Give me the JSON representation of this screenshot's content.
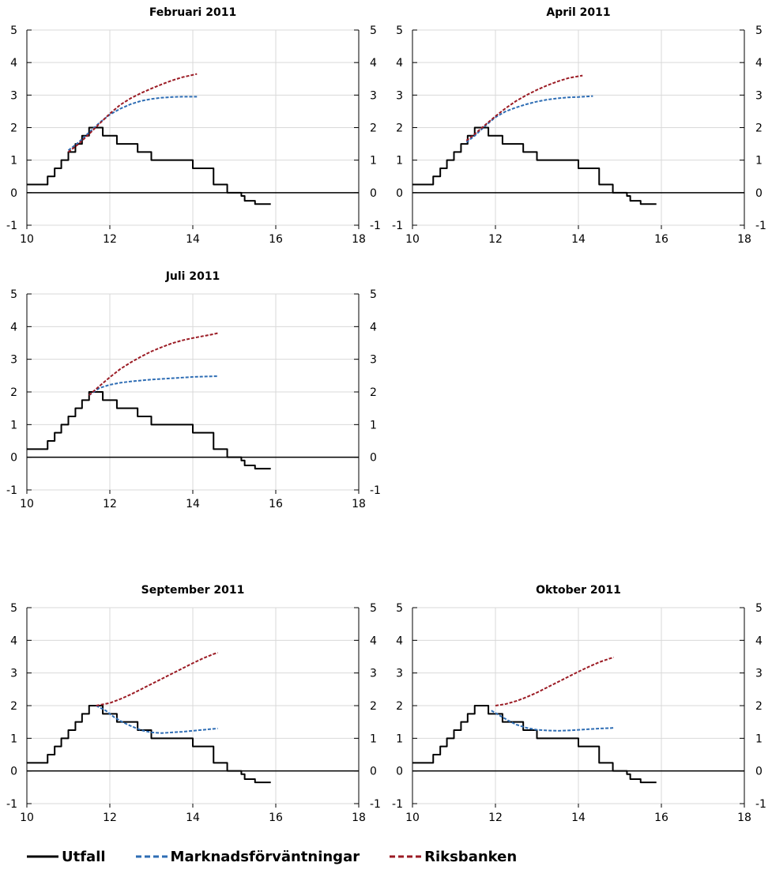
{
  "chart_data": [
    {
      "type": "line",
      "title": "Februari 2011",
      "xlim": [
        10,
        18
      ],
      "ylim": [
        -1,
        5
      ],
      "x_ticks": [
        "10",
        "12",
        "14",
        "16",
        "18"
      ],
      "y_ticks": [
        "-1",
        "0",
        "1",
        "2",
        "3",
        "4",
        "5"
      ],
      "grid": true,
      "series": [
        {
          "name": "Utfall",
          "style": "step",
          "color": "#000000",
          "x": [
            10.0,
            10.5,
            10.67,
            10.83,
            11.0,
            11.17,
            11.33,
            11.5,
            11.58,
            11.67,
            11.83,
            12.0,
            12.17,
            12.25,
            12.42,
            12.5,
            12.67,
            12.83,
            13.0,
            13.17,
            13.33,
            13.5,
            13.67,
            13.83,
            14.0,
            14.17,
            14.33,
            14.5,
            14.67,
            14.83,
            15.0,
            15.17,
            15.25,
            15.33,
            15.5,
            15.67,
            15.83
          ],
          "y": [
            0.25,
            0.5,
            0.75,
            1.0,
            1.25,
            1.5,
            1.75,
            2.0,
            2.0,
            2.0,
            1.75,
            1.75,
            1.5,
            1.5,
            1.5,
            1.5,
            1.25,
            1.25,
            1.0,
            1.0,
            1.0,
            1.0,
            1.0,
            1.0,
            0.75,
            0.75,
            0.75,
            0.25,
            0.25,
            0.0,
            0.0,
            -0.1,
            -0.25,
            -0.25,
            -0.35,
            -0.35,
            -0.35
          ]
        },
        {
          "name": "Marknadsförväntningar",
          "style": "dashed",
          "color": "#2e6db4",
          "x": [
            11.0,
            11.25,
            11.5,
            11.75,
            12.0,
            12.25,
            12.5,
            12.75,
            13.0,
            13.25,
            13.5,
            13.75,
            14.0,
            14.1
          ],
          "y": [
            1.3,
            1.55,
            1.85,
            2.15,
            2.4,
            2.58,
            2.72,
            2.82,
            2.88,
            2.92,
            2.94,
            2.95,
            2.95,
            2.95
          ]
        },
        {
          "name": "Riksbanken",
          "style": "dashed",
          "color": "#9b1b24",
          "x": [
            11.0,
            11.25,
            11.5,
            11.75,
            12.0,
            12.25,
            12.5,
            12.75,
            13.0,
            13.25,
            13.5,
            13.75,
            14.0,
            14.1
          ],
          "y": [
            1.25,
            1.5,
            1.8,
            2.12,
            2.43,
            2.7,
            2.9,
            3.06,
            3.2,
            3.33,
            3.45,
            3.55,
            3.62,
            3.65
          ]
        }
      ]
    },
    {
      "type": "line",
      "title": "April 2011",
      "xlim": [
        10,
        18
      ],
      "ylim": [
        -1,
        5
      ],
      "x_ticks": [
        "10",
        "12",
        "14",
        "16",
        "18"
      ],
      "y_ticks": [
        "-1",
        "0",
        "1",
        "2",
        "3",
        "4",
        "5"
      ],
      "grid": true,
      "series": [
        {
          "name": "Utfall",
          "style": "step",
          "color": "#000000",
          "x": [
            10.0,
            10.5,
            10.67,
            10.83,
            11.0,
            11.17,
            11.33,
            11.5,
            11.58,
            11.67,
            11.83,
            12.0,
            12.17,
            12.25,
            12.42,
            12.5,
            12.67,
            12.83,
            13.0,
            13.17,
            13.33,
            13.5,
            13.67,
            13.83,
            14.0,
            14.17,
            14.33,
            14.5,
            14.67,
            14.83,
            15.0,
            15.17,
            15.25,
            15.33,
            15.5,
            15.67,
            15.83
          ],
          "y": [
            0.25,
            0.5,
            0.75,
            1.0,
            1.25,
            1.5,
            1.75,
            2.0,
            2.0,
            2.0,
            1.75,
            1.75,
            1.5,
            1.5,
            1.5,
            1.5,
            1.25,
            1.25,
            1.0,
            1.0,
            1.0,
            1.0,
            1.0,
            1.0,
            0.75,
            0.75,
            0.75,
            0.25,
            0.25,
            0.0,
            0.0,
            -0.1,
            -0.25,
            -0.25,
            -0.35,
            -0.35,
            -0.35
          ]
        },
        {
          "name": "Marknadsförväntningar",
          "style": "dashed",
          "color": "#2e6db4",
          "x": [
            11.3,
            11.5,
            11.75,
            12.0,
            12.25,
            12.5,
            12.75,
            13.0,
            13.25,
            13.5,
            13.75,
            14.0,
            14.25,
            14.35
          ],
          "y": [
            1.55,
            1.75,
            2.05,
            2.32,
            2.5,
            2.62,
            2.72,
            2.8,
            2.86,
            2.9,
            2.93,
            2.94,
            2.96,
            2.97
          ]
        },
        {
          "name": "Riksbanken",
          "style": "dashed",
          "color": "#9b1b24",
          "x": [
            11.3,
            11.5,
            11.75,
            12.0,
            12.25,
            12.5,
            12.75,
            13.0,
            13.25,
            13.5,
            13.75,
            14.0,
            14.1
          ],
          "y": [
            1.6,
            1.8,
            2.08,
            2.35,
            2.6,
            2.82,
            3.0,
            3.16,
            3.3,
            3.42,
            3.52,
            3.58,
            3.6
          ]
        }
      ]
    },
    {
      "type": "line",
      "title": "Juli 2011",
      "xlim": [
        10,
        18
      ],
      "ylim": [
        -1,
        5
      ],
      "x_ticks": [
        "10",
        "12",
        "14",
        "16",
        "18"
      ],
      "y_ticks": [
        "-1",
        "0",
        "1",
        "2",
        "3",
        "4",
        "5"
      ],
      "grid": true,
      "series": [
        {
          "name": "Utfall",
          "style": "step",
          "color": "#000000",
          "x": [
            10.0,
            10.5,
            10.67,
            10.83,
            11.0,
            11.17,
            11.33,
            11.5,
            11.58,
            11.67,
            11.83,
            12.0,
            12.17,
            12.25,
            12.42,
            12.5,
            12.67,
            12.83,
            13.0,
            13.17,
            13.33,
            13.5,
            13.67,
            13.83,
            14.0,
            14.17,
            14.33,
            14.5,
            14.67,
            14.83,
            15.0,
            15.17,
            15.25,
            15.33,
            15.5,
            15.67,
            15.83
          ],
          "y": [
            0.25,
            0.5,
            0.75,
            1.0,
            1.25,
            1.5,
            1.75,
            2.0,
            2.0,
            2.0,
            1.75,
            1.75,
            1.5,
            1.5,
            1.5,
            1.5,
            1.25,
            1.25,
            1.0,
            1.0,
            1.0,
            1.0,
            1.0,
            1.0,
            0.75,
            0.75,
            0.75,
            0.25,
            0.25,
            0.0,
            0.0,
            -0.1,
            -0.25,
            -0.25,
            -0.35,
            -0.35,
            -0.35
          ]
        },
        {
          "name": "Marknadsförväntningar",
          "style": "dashed",
          "color": "#2e6db4",
          "x": [
            11.5,
            11.75,
            12.0,
            12.25,
            12.5,
            12.75,
            13.0,
            13.25,
            13.5,
            13.75,
            14.0,
            14.25,
            14.5,
            14.6
          ],
          "y": [
            1.9,
            2.12,
            2.22,
            2.28,
            2.32,
            2.35,
            2.38,
            2.4,
            2.42,
            2.44,
            2.46,
            2.47,
            2.48,
            2.48
          ]
        },
        {
          "name": "Riksbanken",
          "style": "dashed",
          "color": "#9b1b24",
          "x": [
            11.5,
            11.75,
            12.0,
            12.25,
            12.5,
            12.75,
            13.0,
            13.25,
            13.5,
            13.75,
            14.0,
            14.25,
            14.5,
            14.6
          ],
          "y": [
            1.9,
            2.18,
            2.45,
            2.7,
            2.9,
            3.08,
            3.24,
            3.37,
            3.49,
            3.58,
            3.65,
            3.71,
            3.77,
            3.8
          ]
        }
      ]
    },
    {
      "type": "line",
      "title": "September 2011",
      "xlim": [
        10,
        18
      ],
      "ylim": [
        -1,
        5
      ],
      "x_ticks": [
        "10",
        "12",
        "14",
        "16",
        "18"
      ],
      "y_ticks": [
        "-1",
        "0",
        "1",
        "2",
        "3",
        "4",
        "5"
      ],
      "grid": true,
      "series": [
        {
          "name": "Utfall",
          "style": "step",
          "color": "#000000",
          "x": [
            10.0,
            10.5,
            10.67,
            10.83,
            11.0,
            11.17,
            11.33,
            11.5,
            11.58,
            11.67,
            11.83,
            12.0,
            12.17,
            12.25,
            12.42,
            12.5,
            12.67,
            12.83,
            13.0,
            13.17,
            13.33,
            13.5,
            13.67,
            13.83,
            14.0,
            14.17,
            14.33,
            14.5,
            14.67,
            14.83,
            15.0,
            15.17,
            15.25,
            15.33,
            15.5,
            15.67,
            15.83
          ],
          "y": [
            0.25,
            0.5,
            0.75,
            1.0,
            1.25,
            1.5,
            1.75,
            2.0,
            2.0,
            2.0,
            1.75,
            1.75,
            1.5,
            1.5,
            1.5,
            1.5,
            1.25,
            1.25,
            1.0,
            1.0,
            1.0,
            1.0,
            1.0,
            1.0,
            0.75,
            0.75,
            0.75,
            0.25,
            0.25,
            0.0,
            0.0,
            -0.1,
            -0.25,
            -0.25,
            -0.35,
            -0.35,
            -0.35
          ]
        },
        {
          "name": "Marknadsförväntningar",
          "style": "dashed",
          "color": "#2e6db4",
          "x": [
            11.67,
            11.9,
            12.1,
            12.3,
            12.5,
            12.75,
            13.0,
            13.25,
            13.5,
            13.75,
            14.0,
            14.25,
            14.5,
            14.6
          ],
          "y": [
            2.0,
            1.85,
            1.65,
            1.5,
            1.38,
            1.25,
            1.18,
            1.16,
            1.18,
            1.2,
            1.23,
            1.26,
            1.29,
            1.3
          ]
        },
        {
          "name": "Riksbanken",
          "style": "dashed",
          "color": "#9b1b24",
          "x": [
            11.67,
            12.0,
            12.25,
            12.5,
            12.75,
            13.0,
            13.25,
            13.5,
            13.75,
            14.0,
            14.25,
            14.5,
            14.6
          ],
          "y": [
            2.0,
            2.08,
            2.2,
            2.34,
            2.5,
            2.66,
            2.82,
            2.98,
            3.14,
            3.3,
            3.45,
            3.58,
            3.62
          ]
        }
      ]
    },
    {
      "type": "line",
      "title": "Oktober 2011",
      "xlim": [
        10,
        18
      ],
      "ylim": [
        -1,
        5
      ],
      "x_ticks": [
        "10",
        "12",
        "14",
        "16",
        "18"
      ],
      "y_ticks": [
        "-1",
        "0",
        "1",
        "2",
        "3",
        "4",
        "5"
      ],
      "grid": true,
      "series": [
        {
          "name": "Utfall",
          "style": "step",
          "color": "#000000",
          "x": [
            10.0,
            10.5,
            10.67,
            10.83,
            11.0,
            11.17,
            11.33,
            11.5,
            11.58,
            11.67,
            11.83,
            12.0,
            12.17,
            12.25,
            12.42,
            12.5,
            12.67,
            12.83,
            13.0,
            13.17,
            13.33,
            13.5,
            13.67,
            13.83,
            14.0,
            14.17,
            14.33,
            14.5,
            14.67,
            14.83,
            15.0,
            15.17,
            15.25,
            15.33,
            15.5,
            15.67,
            15.83
          ],
          "y": [
            0.25,
            0.5,
            0.75,
            1.0,
            1.25,
            1.5,
            1.75,
            2.0,
            2.0,
            2.0,
            1.75,
            1.75,
            1.5,
            1.5,
            1.5,
            1.5,
            1.25,
            1.25,
            1.0,
            1.0,
            1.0,
            1.0,
            1.0,
            1.0,
            0.75,
            0.75,
            0.75,
            0.25,
            0.25,
            0.0,
            0.0,
            -0.1,
            -0.25,
            -0.25,
            -0.35,
            -0.35,
            -0.35
          ]
        },
        {
          "name": "Marknadsförväntningar",
          "style": "dashed",
          "color": "#2e6db4",
          "x": [
            11.9,
            12.1,
            12.3,
            12.5,
            12.75,
            13.0,
            13.25,
            13.5,
            13.75,
            14.0,
            14.25,
            14.5,
            14.75,
            14.85
          ],
          "y": [
            1.85,
            1.7,
            1.55,
            1.42,
            1.32,
            1.26,
            1.24,
            1.23,
            1.24,
            1.26,
            1.28,
            1.3,
            1.31,
            1.32
          ]
        },
        {
          "name": "Riksbanken",
          "style": "dashed",
          "color": "#9b1b24",
          "x": [
            12.0,
            12.25,
            12.5,
            12.75,
            13.0,
            13.25,
            13.5,
            13.75,
            14.0,
            14.25,
            14.5,
            14.75,
            14.85
          ],
          "y": [
            2.0,
            2.05,
            2.14,
            2.26,
            2.4,
            2.56,
            2.72,
            2.88,
            3.04,
            3.19,
            3.33,
            3.44,
            3.48
          ]
        }
      ]
    }
  ],
  "legend": {
    "items": [
      {
        "label": "Utfall",
        "color": "#000000",
        "dash": "solid"
      },
      {
        "label": "Marknadsförväntningar",
        "color": "#2e6db4",
        "dash": "dashed"
      },
      {
        "label": "Riksbanken",
        "color": "#9b1b24",
        "dash": "dashed"
      }
    ]
  }
}
